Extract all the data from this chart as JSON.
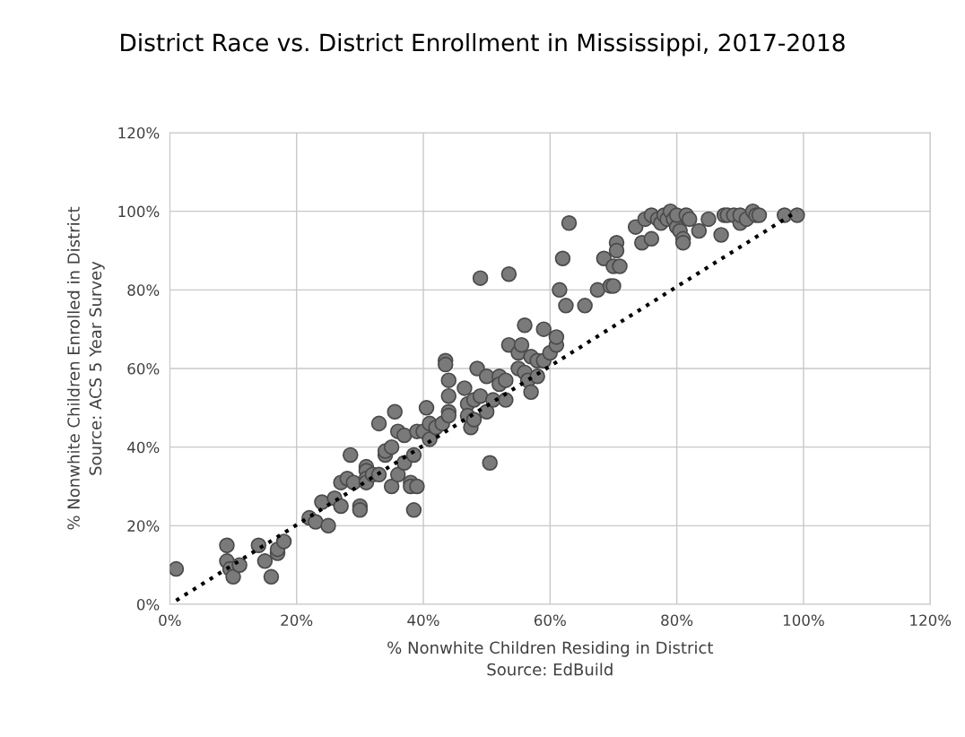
{
  "chart_data": {
    "type": "scatter",
    "title": "District Race vs. District Enrollment in Mississippi, 2017-2018",
    "xlabel": "% Nonwhite Children Residing in District\nSource: EdBuild",
    "ylabel": "% Nonwhite Children Enrolled in District\nSource: ACS 5 Year Survey",
    "xlim": [
      0,
      120
    ],
    "ylim": [
      0,
      120
    ],
    "xticks": [
      {
        "value": 0,
        "label": "0%"
      },
      {
        "value": 20,
        "label": "20%"
      },
      {
        "value": 40,
        "label": "40%"
      },
      {
        "value": 60,
        "label": "60%"
      },
      {
        "value": 80,
        "label": "80%"
      },
      {
        "value": 100,
        "label": "100%"
      },
      {
        "value": 120,
        "label": "120%"
      }
    ],
    "yticks": [
      {
        "value": 0,
        "label": "0%"
      },
      {
        "value": 20,
        "label": "20%"
      },
      {
        "value": 40,
        "label": "40%"
      },
      {
        "value": 60,
        "label": "60%"
      },
      {
        "value": 80,
        "label": "80%"
      },
      {
        "value": 100,
        "label": "100%"
      },
      {
        "value": 120,
        "label": "120%"
      }
    ],
    "grid": true,
    "legend": false,
    "marker": "circle",
    "series": [
      {
        "color": "#7a7a7a",
        "x": [
          1,
          9,
          9,
          9.5,
          10,
          11,
          14,
          15,
          16,
          17,
          17,
          18,
          22,
          23,
          24,
          25,
          26,
          27,
          27,
          28,
          28.5,
          29,
          30,
          30,
          31,
          31,
          31,
          31,
          32,
          33,
          33,
          34,
          34,
          35,
          35,
          35.5,
          36,
          36,
          37,
          37,
          38,
          38,
          38.5,
          38.5,
          39,
          39,
          40,
          40.5,
          41,
          41,
          42,
          43,
          43.5,
          43.5,
          44,
          44,
          44,
          44,
          46.5,
          47,
          47,
          47.5,
          48,
          48,
          48.5,
          49,
          49,
          50,
          50,
          50.5,
          51,
          52,
          52,
          53,
          53,
          53.5,
          53.5,
          55,
          55,
          55.5,
          56,
          56,
          56.5,
          57,
          57,
          58,
          58,
          59,
          59,
          60,
          61,
          61,
          61.5,
          62,
          62.5,
          63,
          65.5,
          67.5,
          68.5,
          69.5,
          70,
          70,
          70.5,
          70.5,
          71,
          73.5,
          74.5,
          75,
          76,
          76,
          77,
          77.5,
          78,
          78.5,
          79,
          79.5,
          80,
          80,
          80.5,
          81,
          81,
          81.5,
          82,
          83.5,
          85,
          87,
          87.5,
          88,
          89,
          90,
          90,
          91,
          92,
          92.5,
          93,
          97,
          99
        ],
        "values": [
          9,
          15,
          11,
          9,
          7,
          10,
          15,
          11,
          7,
          13,
          14,
          16,
          22,
          21,
          26,
          20,
          27,
          25,
          31,
          32,
          38,
          31,
          25,
          24,
          35,
          34,
          32,
          31,
          33,
          46,
          33,
          38,
          39,
          30,
          40,
          49,
          44,
          33,
          43,
          36,
          31,
          30,
          24,
          38,
          44,
          30,
          44,
          50,
          46,
          42,
          45,
          46,
          62,
          61,
          57,
          53,
          49,
          48,
          55,
          51,
          48,
          45,
          47,
          52,
          60,
          83,
          53,
          58,
          49,
          36,
          52,
          58,
          56,
          57,
          52,
          84,
          66,
          64,
          60,
          66,
          71,
          59,
          57,
          54,
          63,
          58,
          62,
          70,
          62,
          64,
          66,
          68,
          80,
          88,
          76,
          97,
          76,
          80,
          88,
          81,
          81,
          86,
          92,
          90,
          86,
          96,
          92,
          98,
          93,
          99,
          98,
          97,
          99,
          98,
          100,
          98,
          96,
          99,
          95,
          93,
          92,
          99,
          98,
          95,
          98,
          94,
          99,
          99,
          99,
          97,
          99,
          98,
          100,
          99,
          99,
          99,
          99
        ]
      },
      {
        "type": "line",
        "color": "#000000",
        "marker": "none",
        "line_style": "dotted",
        "x": [
          1,
          99
        ],
        "values": [
          1,
          100
        ]
      }
    ]
  }
}
